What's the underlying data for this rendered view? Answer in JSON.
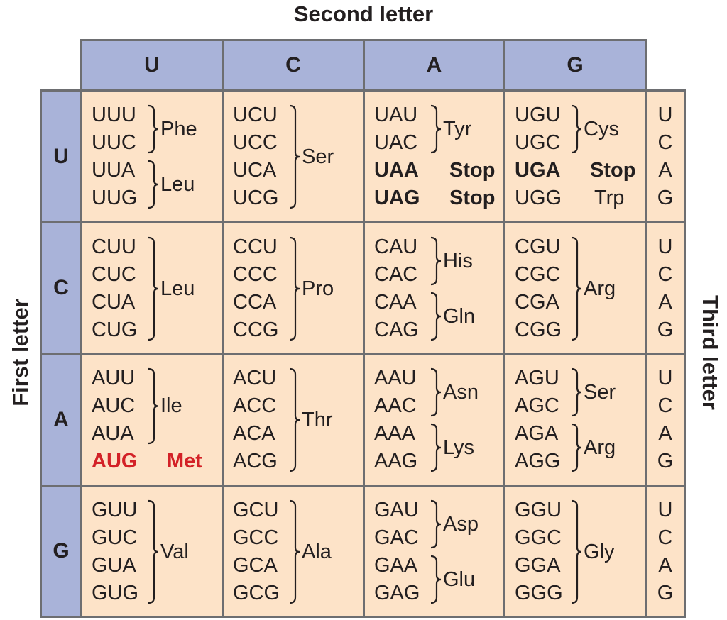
{
  "titles": {
    "second_letter": "Second letter",
    "first_letter": "First letter",
    "third_letter": "Third letter"
  },
  "second_headers": [
    "U",
    "C",
    "A",
    "G"
  ],
  "first_headers": [
    "U",
    "C",
    "A",
    "G"
  ],
  "third_letters": [
    "U",
    "C",
    "A",
    "G"
  ],
  "colors": {
    "header_fill": "#a9b3d9",
    "cell_fill": "#fde3c8",
    "border": "#6d6e71",
    "start_codon": "#d32127"
  },
  "cells": [
    [
      {
        "codons": [
          "UUU",
          "UUC",
          "UUA",
          "UUG"
        ],
        "groups": [
          {
            "rows": [
              0,
              1
            ],
            "aa": "Phe"
          },
          {
            "rows": [
              2,
              3
            ],
            "aa": "Leu"
          }
        ]
      },
      {
        "codons": [
          "UCU",
          "UCC",
          "UCA",
          "UCG"
        ],
        "groups": [
          {
            "rows": [
              0,
              3
            ],
            "aa": "Ser"
          }
        ]
      },
      {
        "codons": [
          "UAU",
          "UAC",
          "UAA",
          "UAG"
        ],
        "groups": [
          {
            "rows": [
              0,
              1
            ],
            "aa": "Tyr"
          },
          {
            "rows": [
              2,
              2
            ],
            "aa": "Stop",
            "plain": true
          },
          {
            "rows": [
              3,
              3
            ],
            "aa": "Stop",
            "plain": true
          }
        ],
        "bold_rows": [
          2,
          3
        ]
      },
      {
        "codons": [
          "UGU",
          "UGC",
          "UGA",
          "UGG"
        ],
        "groups": [
          {
            "rows": [
              0,
              1
            ],
            "aa": "Cys"
          },
          {
            "rows": [
              2,
              2
            ],
            "aa": "Stop",
            "plain": true
          },
          {
            "rows": [
              3,
              3
            ],
            "aa": "Trp",
            "plain": true
          }
        ],
        "bold_rows": [
          2
        ]
      }
    ],
    [
      {
        "codons": [
          "CUU",
          "CUC",
          "CUA",
          "CUG"
        ],
        "groups": [
          {
            "rows": [
              0,
              3
            ],
            "aa": "Leu"
          }
        ]
      },
      {
        "codons": [
          "CCU",
          "CCC",
          "CCA",
          "CCG"
        ],
        "groups": [
          {
            "rows": [
              0,
              3
            ],
            "aa": "Pro"
          }
        ]
      },
      {
        "codons": [
          "CAU",
          "CAC",
          "CAA",
          "CAG"
        ],
        "groups": [
          {
            "rows": [
              0,
              1
            ],
            "aa": "His"
          },
          {
            "rows": [
              2,
              3
            ],
            "aa": "Gln"
          }
        ]
      },
      {
        "codons": [
          "CGU",
          "CGC",
          "CGA",
          "CGG"
        ],
        "groups": [
          {
            "rows": [
              0,
              3
            ],
            "aa": "Arg"
          }
        ]
      }
    ],
    [
      {
        "codons": [
          "AUU",
          "AUC",
          "AUA",
          "AUG"
        ],
        "groups": [
          {
            "rows": [
              0,
              2
            ],
            "aa": "Ile"
          },
          {
            "rows": [
              3,
              3
            ],
            "aa": "Met",
            "plain": true
          }
        ],
        "red_rows": [
          3
        ]
      },
      {
        "codons": [
          "ACU",
          "ACC",
          "ACA",
          "ACG"
        ],
        "groups": [
          {
            "rows": [
              0,
              3
            ],
            "aa": "Thr"
          }
        ]
      },
      {
        "codons": [
          "AAU",
          "AAC",
          "AAA",
          "AAG"
        ],
        "groups": [
          {
            "rows": [
              0,
              1
            ],
            "aa": "Asn"
          },
          {
            "rows": [
              2,
              3
            ],
            "aa": "Lys"
          }
        ]
      },
      {
        "codons": [
          "AGU",
          "AGC",
          "AGA",
          "AGG"
        ],
        "groups": [
          {
            "rows": [
              0,
              1
            ],
            "aa": "Ser"
          },
          {
            "rows": [
              2,
              3
            ],
            "aa": "Arg"
          }
        ]
      }
    ],
    [
      {
        "codons": [
          "GUU",
          "GUC",
          "GUA",
          "GUG"
        ],
        "groups": [
          {
            "rows": [
              0,
              3
            ],
            "aa": "Val"
          }
        ]
      },
      {
        "codons": [
          "GCU",
          "GCC",
          "GCA",
          "GCG"
        ],
        "groups": [
          {
            "rows": [
              0,
              3
            ],
            "aa": "Ala"
          }
        ]
      },
      {
        "codons": [
          "GAU",
          "GAC",
          "GAA",
          "GAG"
        ],
        "groups": [
          {
            "rows": [
              0,
              1
            ],
            "aa": "Asp"
          },
          {
            "rows": [
              2,
              3
            ],
            "aa": "Glu"
          }
        ]
      },
      {
        "codons": [
          "GGU",
          "GGC",
          "GGA",
          "GGG"
        ],
        "groups": [
          {
            "rows": [
              0,
              3
            ],
            "aa": "Gly"
          }
        ]
      }
    ]
  ]
}
